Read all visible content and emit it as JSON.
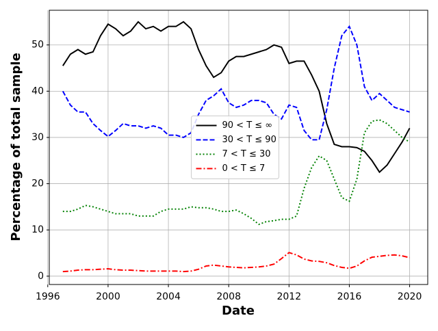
{
  "chart_data": {
    "type": "line",
    "x_label": "Date",
    "y_label": "Percentage of total sample",
    "x": [
      1997,
      1997.5,
      1998,
      1998.5,
      1999,
      1999.5,
      2000,
      2000.5,
      2001,
      2001.5,
      2002,
      2002.5,
      2003,
      2003.5,
      2004,
      2004.5,
      2005,
      2005.5,
      2006,
      2006.5,
      2007,
      2007.5,
      2008,
      2008.5,
      2009,
      2009.5,
      2010,
      2010.5,
      2011,
      2011.5,
      2012,
      2012.5,
      2013,
      2013.5,
      2014,
      2014.5,
      2015,
      2015.5,
      2016,
      2016.5,
      2017,
      2017.5,
      2018,
      2018.5,
      2019,
      2019.5,
      2020
    ],
    "series": [
      {
        "name": "90 < T ≤ ∞",
        "color": "#000000",
        "linestyle": "solid",
        "values": [
          45.5,
          48,
          49,
          48,
          48.5,
          52,
          54.5,
          53.5,
          52,
          53,
          55,
          53.5,
          54,
          53,
          54,
          54,
          55,
          53.5,
          49,
          45.5,
          43,
          44,
          46.5,
          47.5,
          47.5,
          48,
          48.5,
          49,
          50,
          49.5,
          46,
          46.5,
          46.5,
          43.5,
          40,
          33,
          28.5,
          28,
          28,
          27.8,
          27,
          25,
          22.5,
          24,
          26.5,
          29,
          32
        ]
      },
      {
        "name": "30 < T ≤ 90",
        "color": "#0000ff",
        "linestyle": "dashed",
        "values": [
          40,
          37,
          35.5,
          35.5,
          33,
          31.5,
          30.2,
          31.5,
          33,
          32.5,
          32.5,
          32,
          32.5,
          32,
          30.5,
          30.5,
          30,
          31,
          35,
          38,
          39,
          40.5,
          37.5,
          36.5,
          37,
          38,
          38,
          37.5,
          35,
          34,
          37,
          36.5,
          31.5,
          29.5,
          29.5,
          36,
          45,
          52,
          54,
          50,
          41,
          38,
          39.5,
          38,
          36.5,
          36,
          35.5
        ]
      },
      {
        "name": "7 < T ≤ 30",
        "color": "#008000",
        "linestyle": "dotted",
        "values": [
          14,
          14,
          14.5,
          15.3,
          15,
          14.5,
          14,
          13.5,
          13.5,
          13.5,
          13,
          13,
          13,
          14,
          14.5,
          14.5,
          14.5,
          15,
          14.8,
          14.8,
          14.5,
          14,
          14,
          14.3,
          13.5,
          12.5,
          11.2,
          11.8,
          12,
          12.3,
          12.3,
          13,
          19,
          23.5,
          26,
          25,
          21,
          17,
          16.2,
          21,
          31,
          33.5,
          33.8,
          33,
          31.5,
          30,
          29
        ]
      },
      {
        "name": "0 < T ≤ 7",
        "color": "#ff0000",
        "linestyle": "dashdot",
        "values": [
          1,
          1.1,
          1.3,
          1.4,
          1.4,
          1.5,
          1.6,
          1.4,
          1.3,
          1.3,
          1.2,
          1.1,
          1.1,
          1.1,
          1.1,
          1.1,
          1.0,
          1.1,
          1.5,
          2.2,
          2.4,
          2.2,
          2.0,
          1.9,
          1.8,
          1.9,
          2.0,
          2.2,
          2.6,
          3.8,
          5.1,
          4.6,
          3.7,
          3.3,
          3.2,
          2.9,
          2.3,
          1.9,
          1.7,
          2.2,
          3.3,
          4.1,
          4.3,
          4.5,
          4.6,
          4.4,
          4.0
        ]
      }
    ],
    "xlim": [
      1996.1,
      2021.2
    ],
    "xticks": [
      1996,
      2000,
      2004,
      2008,
      2012,
      2016,
      2020
    ],
    "ylim": [
      -1.8,
      57.5
    ],
    "yticks": [
      0,
      10,
      20,
      30,
      40,
      50
    ],
    "grid": true,
    "legend": "center"
  }
}
